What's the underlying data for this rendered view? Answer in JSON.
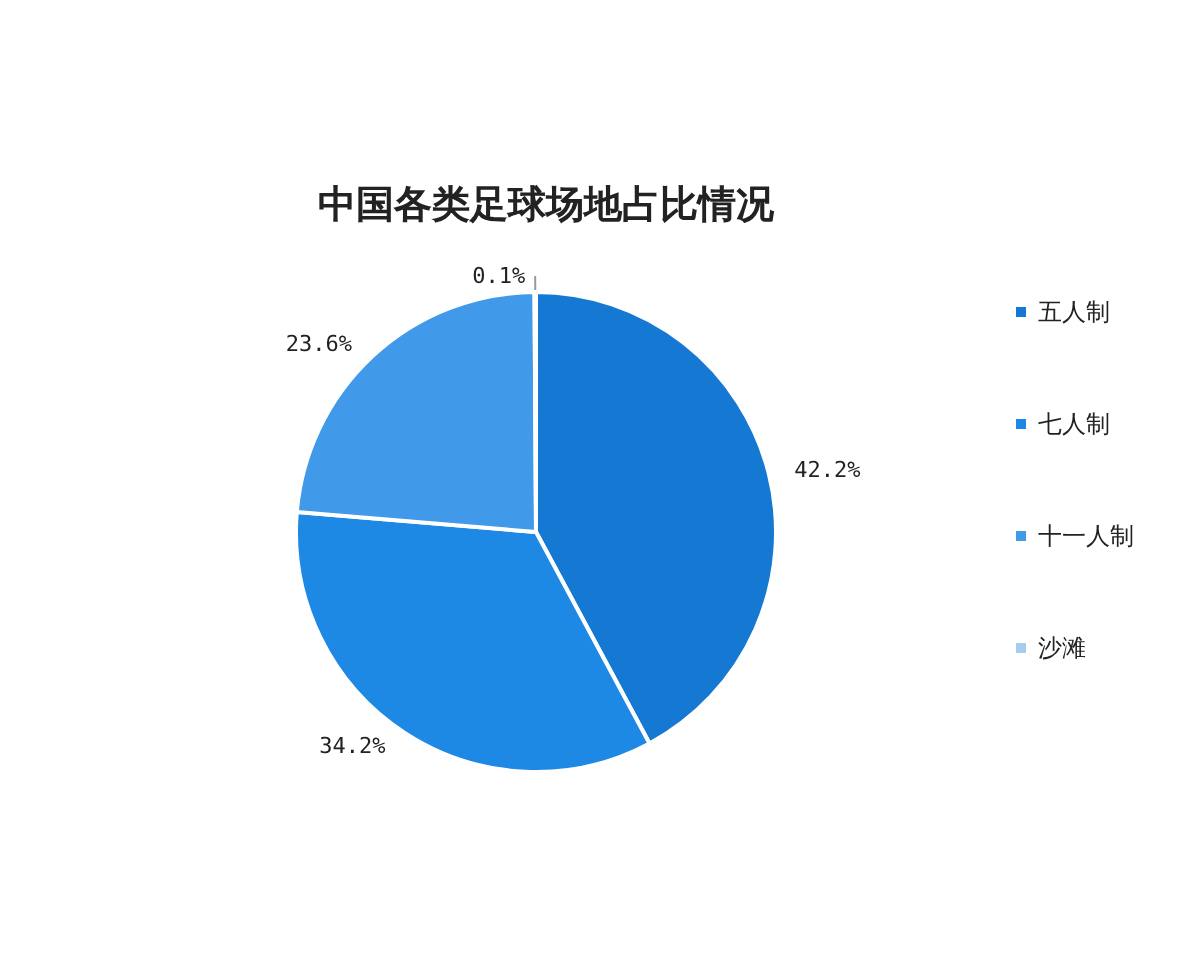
{
  "chart_data": {
    "type": "pie",
    "title": "中国各类足球场地占比情况",
    "categories": [
      "五人制",
      "七人制",
      "十一人制",
      "沙滩"
    ],
    "values": [
      42.2,
      34.2,
      23.6,
      0.1
    ],
    "colors": [
      "#1579d3",
      "#1e88e5",
      "#4199ea",
      "#a7cdee"
    ],
    "value_labels": [
      "42.2%",
      "34.2%",
      "23.6%",
      "0.1%"
    ],
    "legend": "right"
  }
}
